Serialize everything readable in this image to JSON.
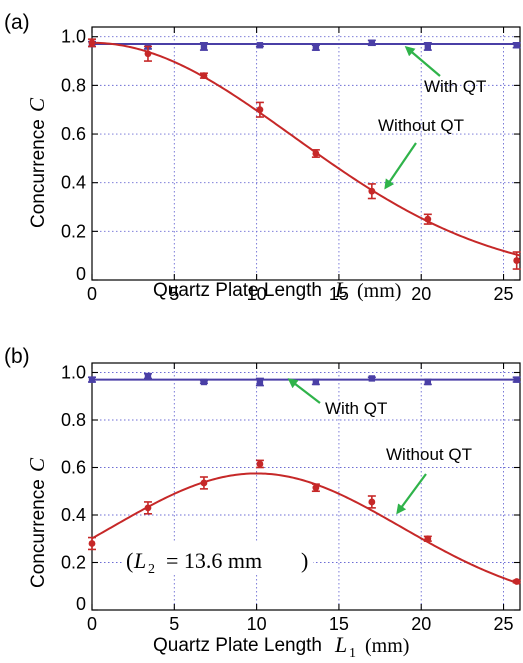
{
  "chart_data": [
    {
      "type": "scatter",
      "panel_label": "(a)",
      "xlabel": "Quartz Plate Length",
      "xlabel_symbol": "L",
      "xlabel_unit": "(mm)",
      "ylabel": "Concurrence",
      "ylabel_symbol": "C",
      "xlim": [
        0,
        26
      ],
      "ylim": [
        0,
        1.04
      ],
      "x_ticks": [
        0,
        5,
        10,
        15,
        20,
        25
      ],
      "y_ticks": [
        0,
        0.2,
        0.4,
        0.6,
        0.8,
        1.0
      ],
      "x_tick_labels": [
        "0",
        "5",
        "10",
        "15",
        "20",
        "25"
      ],
      "y_tick_labels": [
        "0",
        "0.2",
        "0.4",
        "0.6",
        "0.8",
        "1.0"
      ],
      "grid": true,
      "series": [
        {
          "name": "With QT",
          "color": "#4a3fa6",
          "points": [
            {
              "x": 0,
              "y": 0.97,
              "err": 0.01
            },
            {
              "x": 3.4,
              "y": 0.96,
              "err": 0.01
            },
            {
              "x": 6.8,
              "y": 0.96,
              "err": 0.015
            },
            {
              "x": 10.2,
              "y": 0.965,
              "err": 0.005
            },
            {
              "x": 13.6,
              "y": 0.955,
              "err": 0.01
            },
            {
              "x": 17.0,
              "y": 0.975,
              "err": 0.01
            },
            {
              "x": 20.4,
              "y": 0.96,
              "err": 0.015
            },
            {
              "x": 25.8,
              "y": 0.965,
              "err": 0.01
            }
          ],
          "fit": {
            "kind": "constant",
            "value": 0.97
          }
        },
        {
          "name": "Without QT",
          "color": "#c62828",
          "points": [
            {
              "x": 0,
              "y": 0.975,
              "err": 0.015
            },
            {
              "x": 3.4,
              "y": 0.93,
              "err": 0.03
            },
            {
              "x": 6.8,
              "y": 0.84,
              "err": 0.01
            },
            {
              "x": 10.2,
              "y": 0.7,
              "err": 0.03
            },
            {
              "x": 13.6,
              "y": 0.52,
              "err": 0.015
            },
            {
              "x": 17.0,
              "y": 0.365,
              "err": 0.03
            },
            {
              "x": 20.4,
              "y": 0.25,
              "err": 0.02
            },
            {
              "x": 25.8,
              "y": 0.08,
              "err": 0.035
            }
          ],
          "fit": {
            "kind": "gaussian",
            "amplitude": 0.975,
            "center": 0,
            "sigma": 12.2
          }
        }
      ],
      "annotations": [
        {
          "text": "With QT",
          "arrow_to_series": "With QT"
        },
        {
          "text": "Without QT",
          "arrow_to_series": "Without QT"
        }
      ]
    },
    {
      "type": "scatter",
      "panel_label": "(b)",
      "xlabel": "Quartz Plate Length",
      "xlabel_symbol": "L",
      "xlabel_symbol_sub": "1",
      "xlabel_unit": "(mm)",
      "ylabel": "Concurrence",
      "ylabel_symbol": "C",
      "xlim": [
        0,
        26
      ],
      "ylim": [
        0,
        1.04
      ],
      "x_ticks": [
        0,
        5,
        10,
        15,
        20,
        25
      ],
      "y_ticks": [
        0,
        0.2,
        0.4,
        0.6,
        0.8,
        1.0
      ],
      "x_tick_labels": [
        "0",
        "5",
        "10",
        "15",
        "20",
        "25"
      ],
      "y_tick_labels": [
        "0",
        "0.2",
        "0.4",
        "0.6",
        "0.8",
        "1.0"
      ],
      "grid": true,
      "series": [
        {
          "name": "With QT",
          "color": "#4a3fa6",
          "points": [
            {
              "x": 0,
              "y": 0.97,
              "err": 0.01
            },
            {
              "x": 3.4,
              "y": 0.985,
              "err": 0.01
            },
            {
              "x": 6.8,
              "y": 0.96,
              "err": 0.005
            },
            {
              "x": 10.2,
              "y": 0.96,
              "err": 0.015
            },
            {
              "x": 13.6,
              "y": 0.96,
              "err": 0.01
            },
            {
              "x": 17.0,
              "y": 0.975,
              "err": 0.005
            },
            {
              "x": 20.4,
              "y": 0.96,
              "err": 0.01
            },
            {
              "x": 25.8,
              "y": 0.97,
              "err": 0.01
            }
          ],
          "fit": {
            "kind": "constant",
            "value": 0.97
          }
        },
        {
          "name": "Without QT",
          "color": "#c62828",
          "points": [
            {
              "x": 0,
              "y": 0.28,
              "err": 0.025
            },
            {
              "x": 3.4,
              "y": 0.43,
              "err": 0.025
            },
            {
              "x": 6.8,
              "y": 0.535,
              "err": 0.025
            },
            {
              "x": 10.2,
              "y": 0.615,
              "err": 0.015
            },
            {
              "x": 13.6,
              "y": 0.515,
              "err": 0.015
            },
            {
              "x": 17.0,
              "y": 0.455,
              "err": 0.025
            },
            {
              "x": 20.4,
              "y": 0.3,
              "err": 0.01
            },
            {
              "x": 25.8,
              "y": 0.12,
              "err": 0.005
            }
          ],
          "fit": {
            "kind": "gaussian",
            "amplitude": 0.575,
            "center": 10.0,
            "sigma": 8.8
          }
        }
      ],
      "inset_text": {
        "symbol": "L",
        "sub": "2",
        "value": "= 13.6 mm"
      },
      "annotations": [
        {
          "text": "With QT",
          "arrow_to_series": "With QT"
        },
        {
          "text": "Without QT",
          "arrow_to_series": "Without QT"
        }
      ]
    }
  ],
  "colors": {
    "with_qt": "#4a3fa6",
    "without_qt": "#c62828",
    "arrow": "#2fb34a",
    "grid": "#6c6cd4"
  }
}
